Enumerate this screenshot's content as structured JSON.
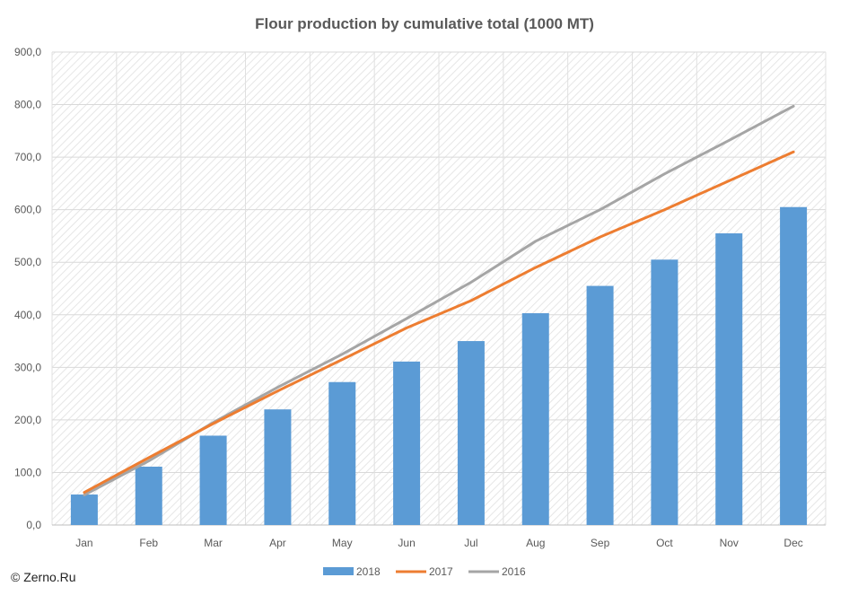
{
  "chart_data": {
    "type": "bar",
    "title": "Flour production by cumulative total (1000 MT)",
    "xlabel": "",
    "ylabel": "",
    "categories": [
      "Jan",
      "Feb",
      "Mar",
      "Apr",
      "May",
      "Jun",
      "Jul",
      "Aug",
      "Sep",
      "Oct",
      "Nov",
      "Dec"
    ],
    "ylim": [
      0,
      900
    ],
    "yticks": [
      "0,0",
      "100,0",
      "200,0",
      "300,0",
      "400,0",
      "500,0",
      "600,0",
      "700,0",
      "800,0",
      "900,0"
    ],
    "grid": true,
    "legend_position": "bottom",
    "series": [
      {
        "name": "2018",
        "type": "bar",
        "color": "#5b9bd5",
        "values": [
          58,
          111,
          170,
          220,
          272,
          311,
          350,
          403,
          455,
          505,
          555,
          605
        ]
      },
      {
        "name": "2017",
        "type": "line",
        "color": "#ed7d31",
        "values": [
          62,
          128,
          193,
          255,
          315,
          375,
          427,
          490,
          548,
          600,
          655,
          710
        ]
      },
      {
        "name": "2016",
        "type": "line",
        "color": "#a5a5a5",
        "values": [
          57,
          122,
          195,
          262,
          325,
          393,
          462,
          540,
          600,
          668,
          732,
          797
        ]
      }
    ]
  },
  "credit": "© Zerno.Ru"
}
